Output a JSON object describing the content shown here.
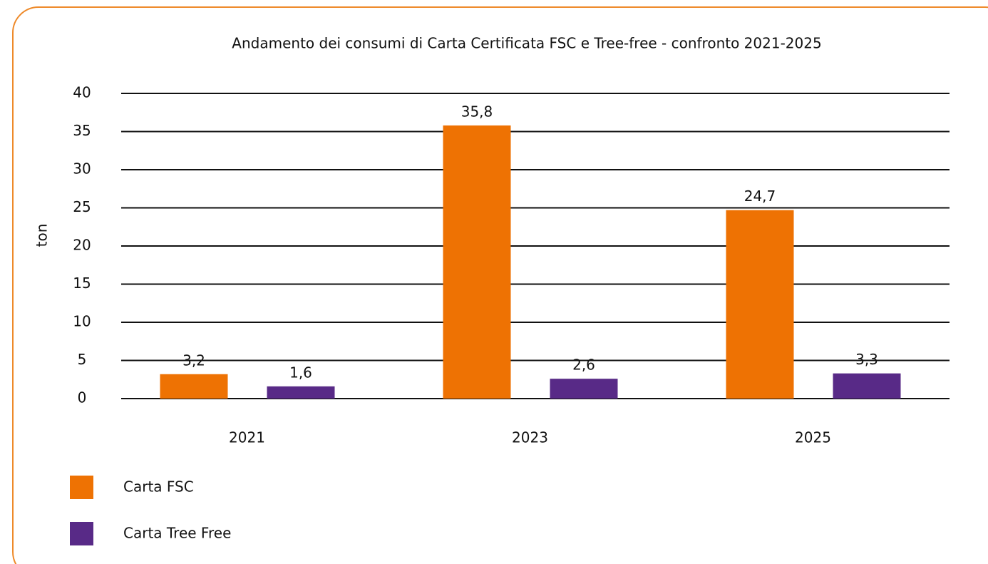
{
  "chart_data": {
    "type": "bar",
    "title": "Andamento dei consumi di Carta Certificata FSC e Tree-free - confronto 2021-2025",
    "y_label": "ton",
    "categories": [
      "2021",
      "2023",
      "2025"
    ],
    "series": [
      {
        "name": "Carta FSC",
        "color": "#ee7203",
        "values": [
          3.2,
          35.8,
          24.7
        ],
        "value_labels": [
          "3,2",
          "35,8",
          "24,7"
        ]
      },
      {
        "name": "Carta Tree Free",
        "color": "#582a87",
        "values": [
          1.6,
          2.6,
          3.3
        ],
        "value_labels": [
          "1,6",
          "2,6",
          "3,3"
        ]
      }
    ],
    "ylim": [
      0,
      40
    ],
    "yticks": [
      0,
      5,
      10,
      15,
      20,
      25,
      30,
      35,
      40
    ],
    "grid": true
  }
}
